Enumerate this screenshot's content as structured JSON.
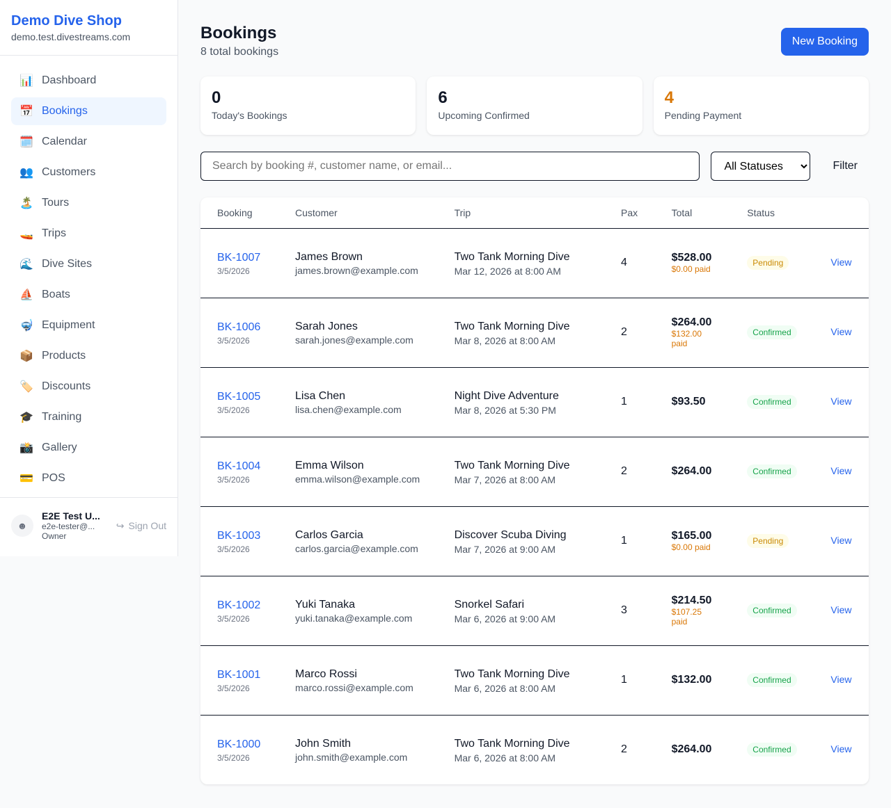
{
  "sidebar": {
    "shop_name": "Demo Dive Shop",
    "domain": "demo.test.divestreams.com",
    "items": [
      {
        "label": "Dashboard",
        "icon": "📊",
        "active": false
      },
      {
        "label": "Bookings",
        "icon": "📅",
        "active": true
      },
      {
        "label": "Calendar",
        "icon": "🗓️",
        "active": false
      },
      {
        "label": "Customers",
        "icon": "👥",
        "active": false
      },
      {
        "label": "Tours",
        "icon": "🏝️",
        "active": false
      },
      {
        "label": "Trips",
        "icon": "🚤",
        "active": false
      },
      {
        "label": "Dive Sites",
        "icon": "🌊",
        "active": false
      },
      {
        "label": "Boats",
        "icon": "⛵",
        "active": false
      },
      {
        "label": "Equipment",
        "icon": "🤿",
        "active": false
      },
      {
        "label": "Products",
        "icon": "📦",
        "active": false
      },
      {
        "label": "Discounts",
        "icon": "🏷️",
        "active": false
      },
      {
        "label": "Training",
        "icon": "🎓",
        "active": false
      },
      {
        "label": "Gallery",
        "icon": "📸",
        "active": false
      },
      {
        "label": "POS",
        "icon": "💳",
        "active": false
      }
    ],
    "user": {
      "name": "E2E Test U...",
      "email": "e2e-tester@...",
      "role": "Owner",
      "sign_out": "Sign Out"
    }
  },
  "header": {
    "title": "Bookings",
    "subtitle": "8 total bookings",
    "new_button": "New Booking"
  },
  "stats": [
    {
      "value": "0",
      "label": "Today's Bookings",
      "color": "#111827"
    },
    {
      "value": "6",
      "label": "Upcoming Confirmed",
      "color": "#111827"
    },
    {
      "value": "4",
      "label": "Pending Payment",
      "color": "#d97706"
    }
  ],
  "filters": {
    "search_placeholder": "Search by booking #, customer name, or email...",
    "status_selected": "All Statuses",
    "filter_button": "Filter"
  },
  "table": {
    "columns": [
      "Booking",
      "Customer",
      "Trip",
      "Pax",
      "Total",
      "Status",
      ""
    ],
    "rows": [
      {
        "id": "BK-1007",
        "date": "3/5/2026",
        "customer": "James Brown",
        "email": "james.brown@example.com",
        "trip": "Two Tank Morning Dive",
        "trip_date": "Mar 12, 2026 at 8:00 AM",
        "pax": "4",
        "total": "$528.00",
        "paid": "$0.00 paid",
        "status": "Pending",
        "action": "View"
      },
      {
        "id": "BK-1006",
        "date": "3/5/2026",
        "customer": "Sarah Jones",
        "email": "sarah.jones@example.com",
        "trip": "Two Tank Morning Dive",
        "trip_date": "Mar 8, 2026 at 8:00 AM",
        "pax": "2",
        "total": "$264.00",
        "paid": "$132.00 paid",
        "status": "Confirmed",
        "action": "View"
      },
      {
        "id": "BK-1005",
        "date": "3/5/2026",
        "customer": "Lisa Chen",
        "email": "lisa.chen@example.com",
        "trip": "Night Dive Adventure",
        "trip_date": "Mar 8, 2026 at 5:30 PM",
        "pax": "1",
        "total": "$93.50",
        "paid": null,
        "status": "Confirmed",
        "action": "View"
      },
      {
        "id": "BK-1004",
        "date": "3/5/2026",
        "customer": "Emma Wilson",
        "email": "emma.wilson@example.com",
        "trip": "Two Tank Morning Dive",
        "trip_date": "Mar 7, 2026 at 8:00 AM",
        "pax": "2",
        "total": "$264.00",
        "paid": null,
        "status": "Confirmed",
        "action": "View"
      },
      {
        "id": "BK-1003",
        "date": "3/5/2026",
        "customer": "Carlos Garcia",
        "email": "carlos.garcia@example.com",
        "trip": "Discover Scuba Diving",
        "trip_date": "Mar 7, 2026 at 9:00 AM",
        "pax": "1",
        "total": "$165.00",
        "paid": "$0.00 paid",
        "status": "Pending",
        "action": "View"
      },
      {
        "id": "BK-1002",
        "date": "3/5/2026",
        "customer": "Yuki Tanaka",
        "email": "yuki.tanaka@example.com",
        "trip": "Snorkel Safari",
        "trip_date": "Mar 6, 2026 at 9:00 AM",
        "pax": "3",
        "total": "$214.50",
        "paid": "$107.25 paid",
        "status": "Confirmed",
        "action": "View"
      },
      {
        "id": "BK-1001",
        "date": "3/5/2026",
        "customer": "Marco Rossi",
        "email": "marco.rossi@example.com",
        "trip": "Two Tank Morning Dive",
        "trip_date": "Mar 6, 2026 at 8:00 AM",
        "pax": "1",
        "total": "$132.00",
        "paid": null,
        "status": "Confirmed",
        "action": "View"
      },
      {
        "id": "BK-1000",
        "date": "3/5/2026",
        "customer": "John Smith",
        "email": "john.smith@example.com",
        "trip": "Two Tank Morning Dive",
        "trip_date": "Mar 6, 2026 at 8:00 AM",
        "pax": "2",
        "total": "$264.00",
        "paid": null,
        "status": "Confirmed",
        "action": "View"
      }
    ]
  }
}
